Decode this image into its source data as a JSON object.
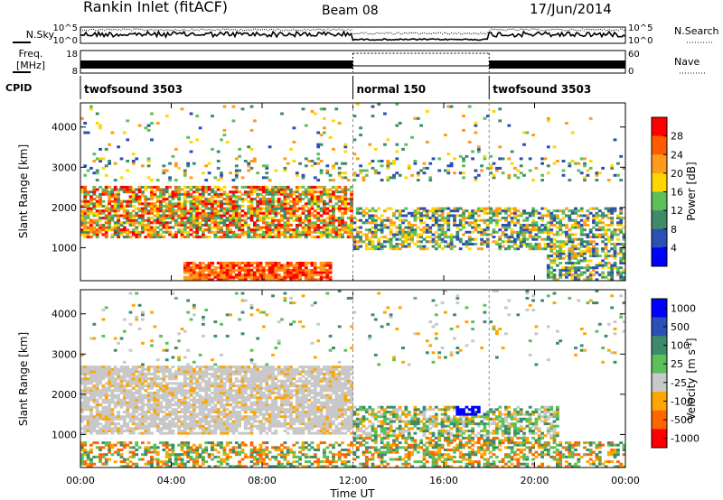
{
  "header": {
    "station": "Rankin Inlet (fitACF)",
    "beam": "Beam 08",
    "date": "17/Jun/2014"
  },
  "top_panels": {
    "nsky_label": "N.Sky",
    "nsky_ticks": [
      "10^5",
      "10^0"
    ],
    "nsearch_label": "N.Search",
    "freq_label": "Freq.",
    "freq_unit": "[MHz]",
    "freq_ticks": [
      "18",
      "8"
    ],
    "nave_label": "Nave",
    "nave_ticks": [
      "60",
      "0"
    ],
    "cpid_label": "CPID",
    "cpid_segments": [
      {
        "name": "twofsound 3503",
        "start_h": 0,
        "end_h": 12
      },
      {
        "name": "normal 150",
        "start_h": 12,
        "end_h": 18
      },
      {
        "name": "twofsound 3503",
        "start_h": 18,
        "end_h": 24
      }
    ]
  },
  "axes": {
    "xlabel": "Time UT",
    "x_ticks": [
      "00:00",
      "04:00",
      "08:00",
      "12:00",
      "16:00",
      "20:00",
      "00:00"
    ],
    "ylabel": "Slant Range [km]",
    "y_ticks": [
      "1000",
      "2000",
      "3000",
      "4000"
    ]
  },
  "colorbars": {
    "power": {
      "label": "Power [dB]",
      "ticks": [
        "4",
        "8",
        "12",
        "16",
        "20",
        "24",
        "28"
      ],
      "colors": [
        "#0000ff",
        "#2a4fb5",
        "#3f8a6a",
        "#5cc05a",
        "#ffd700",
        "#ff9a1a",
        "#ff5a00",
        "#ff0000"
      ]
    },
    "velocity": {
      "label": "Velocity",
      "unit": "[m s",
      "unit_exp": "-1",
      "unit_close": "]",
      "ticks": [
        "1000",
        "500",
        "100",
        "25",
        "-25",
        "-100",
        "-500",
        "-1000"
      ],
      "colors": [
        "#0000ff",
        "#2a4fb5",
        "#3f8a6a",
        "#5cc05a",
        "#c8c8c8",
        "#ffa500",
        "#ff6600",
        "#ff0000"
      ]
    }
  },
  "chart_data": [
    {
      "type": "heatmap",
      "title": "Power",
      "xlabel": "Time UT",
      "ylabel": "Slant Range [km]",
      "x_range_hours": [
        0,
        24
      ],
      "y_range_km": [
        180,
        4600
      ],
      "value_range": [
        0,
        30
      ],
      "features": [
        {
          "region": "broad F-region band",
          "time_h": [
            0,
            12
          ],
          "range_km": [
            1200,
            2400
          ],
          "power_db": 18
        },
        {
          "region": "near-range E-region",
          "time_h": [
            4.5,
            11
          ],
          "range_km": [
            200,
            600
          ],
          "power_db": 28
        },
        {
          "region": "evening band",
          "time_h": [
            12,
            24
          ],
          "range_km": [
            800,
            2000
          ],
          "power_db": 14
        }
      ]
    },
    {
      "type": "heatmap",
      "title": "Velocity",
      "xlabel": "Time UT",
      "ylabel": "Slant Range [km]",
      "x_range_hours": [
        0,
        24
      ],
      "y_range_km": [
        180,
        4600
      ],
      "value_range": [
        -1000,
        1000
      ],
      "features": [
        {
          "region": "grey low-velocity band",
          "time_h": [
            0,
            12
          ],
          "range_km": [
            1000,
            2600
          ],
          "velocity": 0
        },
        {
          "region": "blue positive patch",
          "time_h": [
            16.5,
            17.8
          ],
          "range_km": [
            1500,
            1900
          ],
          "velocity": 900
        },
        {
          "region": "orange negative patches",
          "time_h": [
            7,
            16
          ],
          "range_km": [
            300,
            1000
          ],
          "velocity": -300
        }
      ]
    }
  ]
}
